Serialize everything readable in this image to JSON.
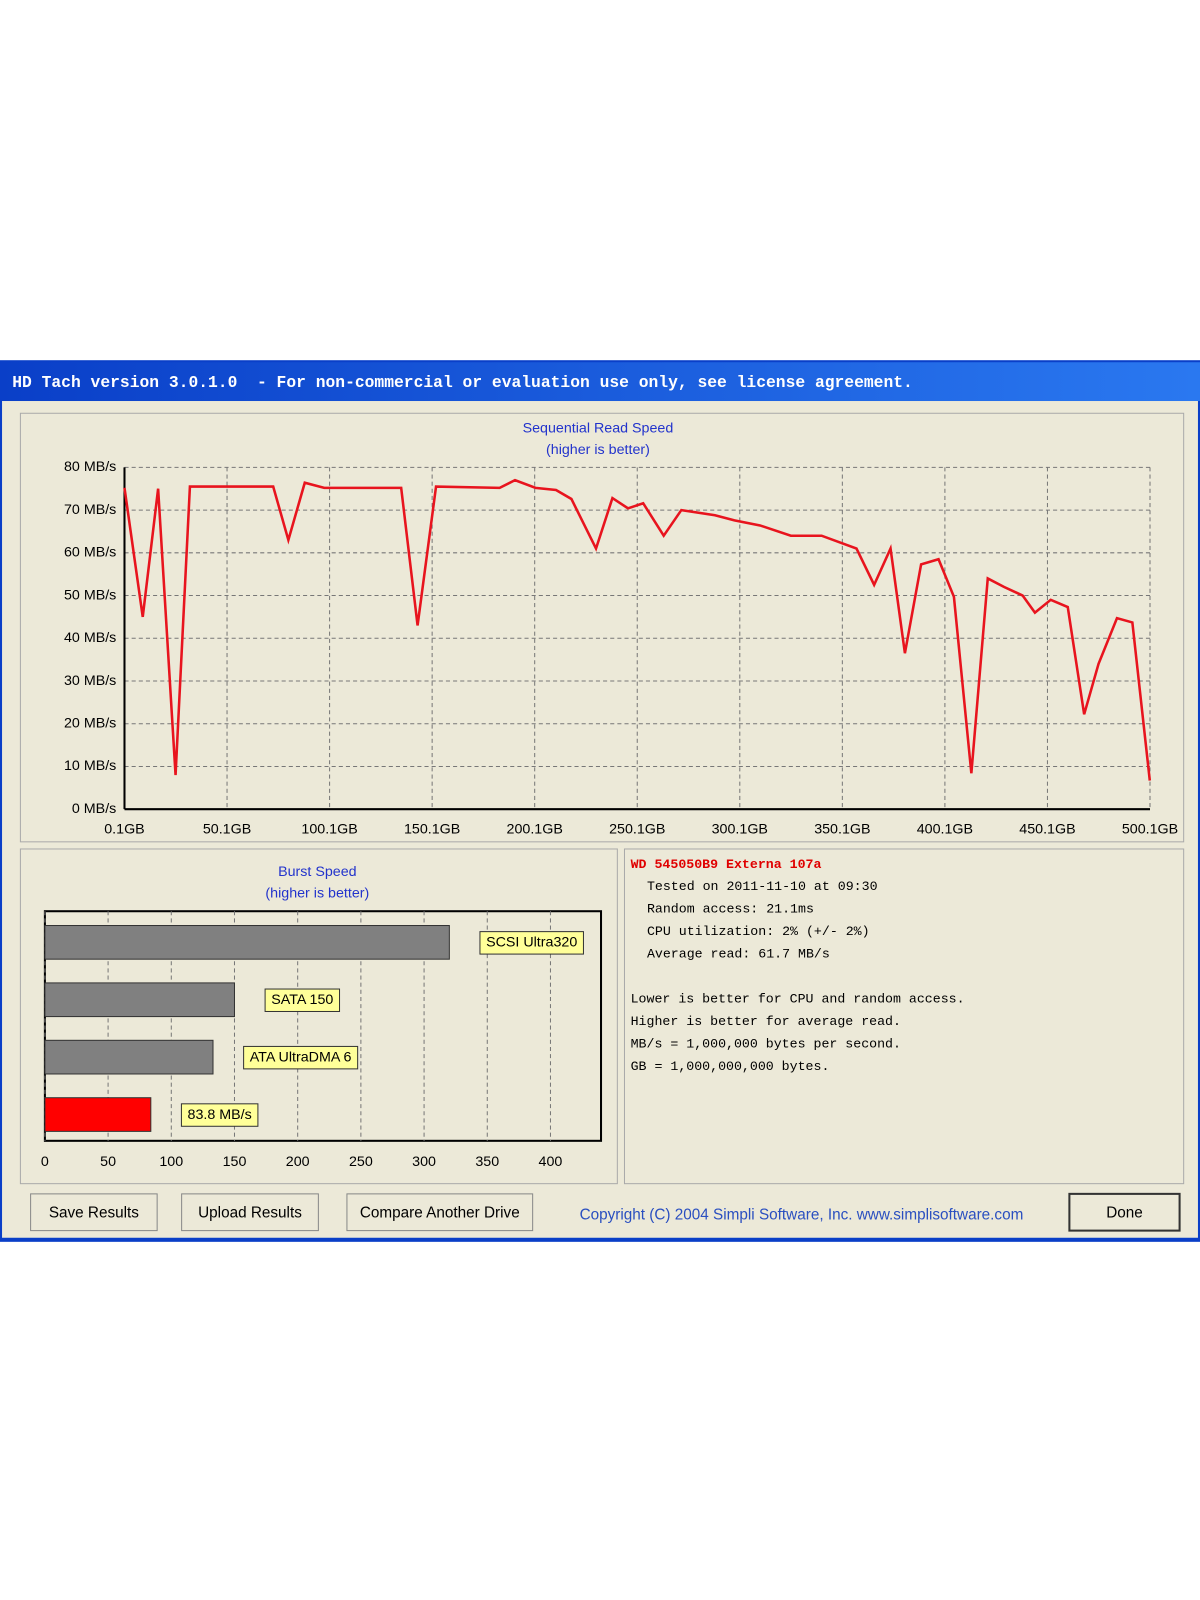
{
  "window": {
    "title": "HD Tach version 3.0.1.0  - For non-commercial or evaluation use only, see license agreement."
  },
  "chart_data": [
    {
      "type": "line",
      "title": "Sequential Read Speed",
      "subtitle": "(higher is better)",
      "color": "#e8141e",
      "grid": true,
      "x": [
        0.1,
        9,
        16.5,
        25,
        32,
        41,
        72.6,
        80,
        88,
        97.5,
        135,
        143,
        152,
        183,
        190.5,
        200.5,
        210.5,
        218,
        230,
        238,
        245.6,
        253,
        263,
        271.6,
        288,
        297.5,
        310,
        325,
        340,
        357,
        365.6,
        373.6,
        380.6,
        388.5,
        397,
        404.5,
        413,
        421,
        429,
        438,
        444,
        451.7,
        460,
        468,
        475,
        484,
        491.5,
        500
      ],
      "values": [
        75.2,
        45,
        75,
        8,
        75.5,
        75.5,
        75.5,
        63,
        76.4,
        75.2,
        75.2,
        43,
        75.5,
        75.2,
        77,
        75.2,
        74.7,
        72.6,
        61,
        72.8,
        70.4,
        71.6,
        64,
        70,
        68.8,
        67.6,
        66.4,
        64,
        64,
        61,
        52.5,
        61,
        36.5,
        57.3,
        58.5,
        49.7,
        8.4,
        54,
        52,
        50,
        46,
        49,
        47.3,
        22.2,
        34,
        44.7,
        43.7,
        6.7
      ],
      "xlim": [
        0.1,
        500.1
      ],
      "xticks": [
        {
          "value": 0.1,
          "label": "0.1GB"
        },
        {
          "value": 50.1,
          "label": "50.1GB"
        },
        {
          "value": 100.1,
          "label": "100.1GB"
        },
        {
          "value": 150.1,
          "label": "150.1GB"
        },
        {
          "value": 200.1,
          "label": "200.1GB"
        },
        {
          "value": 250.1,
          "label": "250.1GB"
        },
        {
          "value": 300.1,
          "label": "300.1GB"
        },
        {
          "value": 350.1,
          "label": "350.1GB"
        },
        {
          "value": 400.1,
          "label": "400.1GB"
        },
        {
          "value": 450.1,
          "label": "450.1GB"
        },
        {
          "value": 500.1,
          "label": "500.1GB"
        }
      ],
      "ylim": [
        0,
        80
      ],
      "yticks": [
        {
          "value": 0,
          "label": "0 MB/s"
        },
        {
          "value": 10,
          "label": "10 MB/s"
        },
        {
          "value": 20,
          "label": "20 MB/s"
        },
        {
          "value": 30,
          "label": "30 MB/s"
        },
        {
          "value": 40,
          "label": "40 MB/s"
        },
        {
          "value": 50,
          "label": "50 MB/s"
        },
        {
          "value": 60,
          "label": "60 MB/s"
        },
        {
          "value": 70,
          "label": "70 MB/s"
        },
        {
          "value": 80,
          "label": "80 MB/s"
        }
      ]
    },
    {
      "type": "bar",
      "title": "Burst Speed",
      "subtitle": "(higher is better)",
      "grid": true,
      "categories": [
        "SCSI Ultra320",
        "SATA 150",
        "ATA UltraDMA 6",
        null
      ],
      "values": [
        320,
        150,
        133,
        83.8
      ],
      "value_labels": [
        null,
        null,
        null,
        "83.8 MB/s"
      ],
      "colors": [
        "#808080",
        "#808080",
        "#808080",
        "#ff0000"
      ],
      "xlim": [
        0,
        440
      ],
      "xticks": [
        0,
        50,
        100,
        150,
        200,
        250,
        300,
        350,
        400
      ]
    }
  ],
  "info": {
    "drive": "WD 545050B9 Externa 107a",
    "details": [
      "Tested on 2011-11-10 at 09:30",
      "Random access: 21.1ms",
      "CPU utilization: 2% (+/- 2%)",
      "Average read: 61.7 MB/s"
    ],
    "notes": [
      "Lower is better for CPU and random access.",
      "Higher is better for average read.",
      "MB/s = 1,000,000 bytes per second.",
      "GB = 1,000,000,000 bytes."
    ]
  },
  "buttons": [
    "Save Results",
    "Upload Results",
    "Compare Another Drive"
  ],
  "copyright": "Copyright (C) 2004 Simpli Software, Inc. www.simplisoftware.com",
  "done_button": "Done"
}
